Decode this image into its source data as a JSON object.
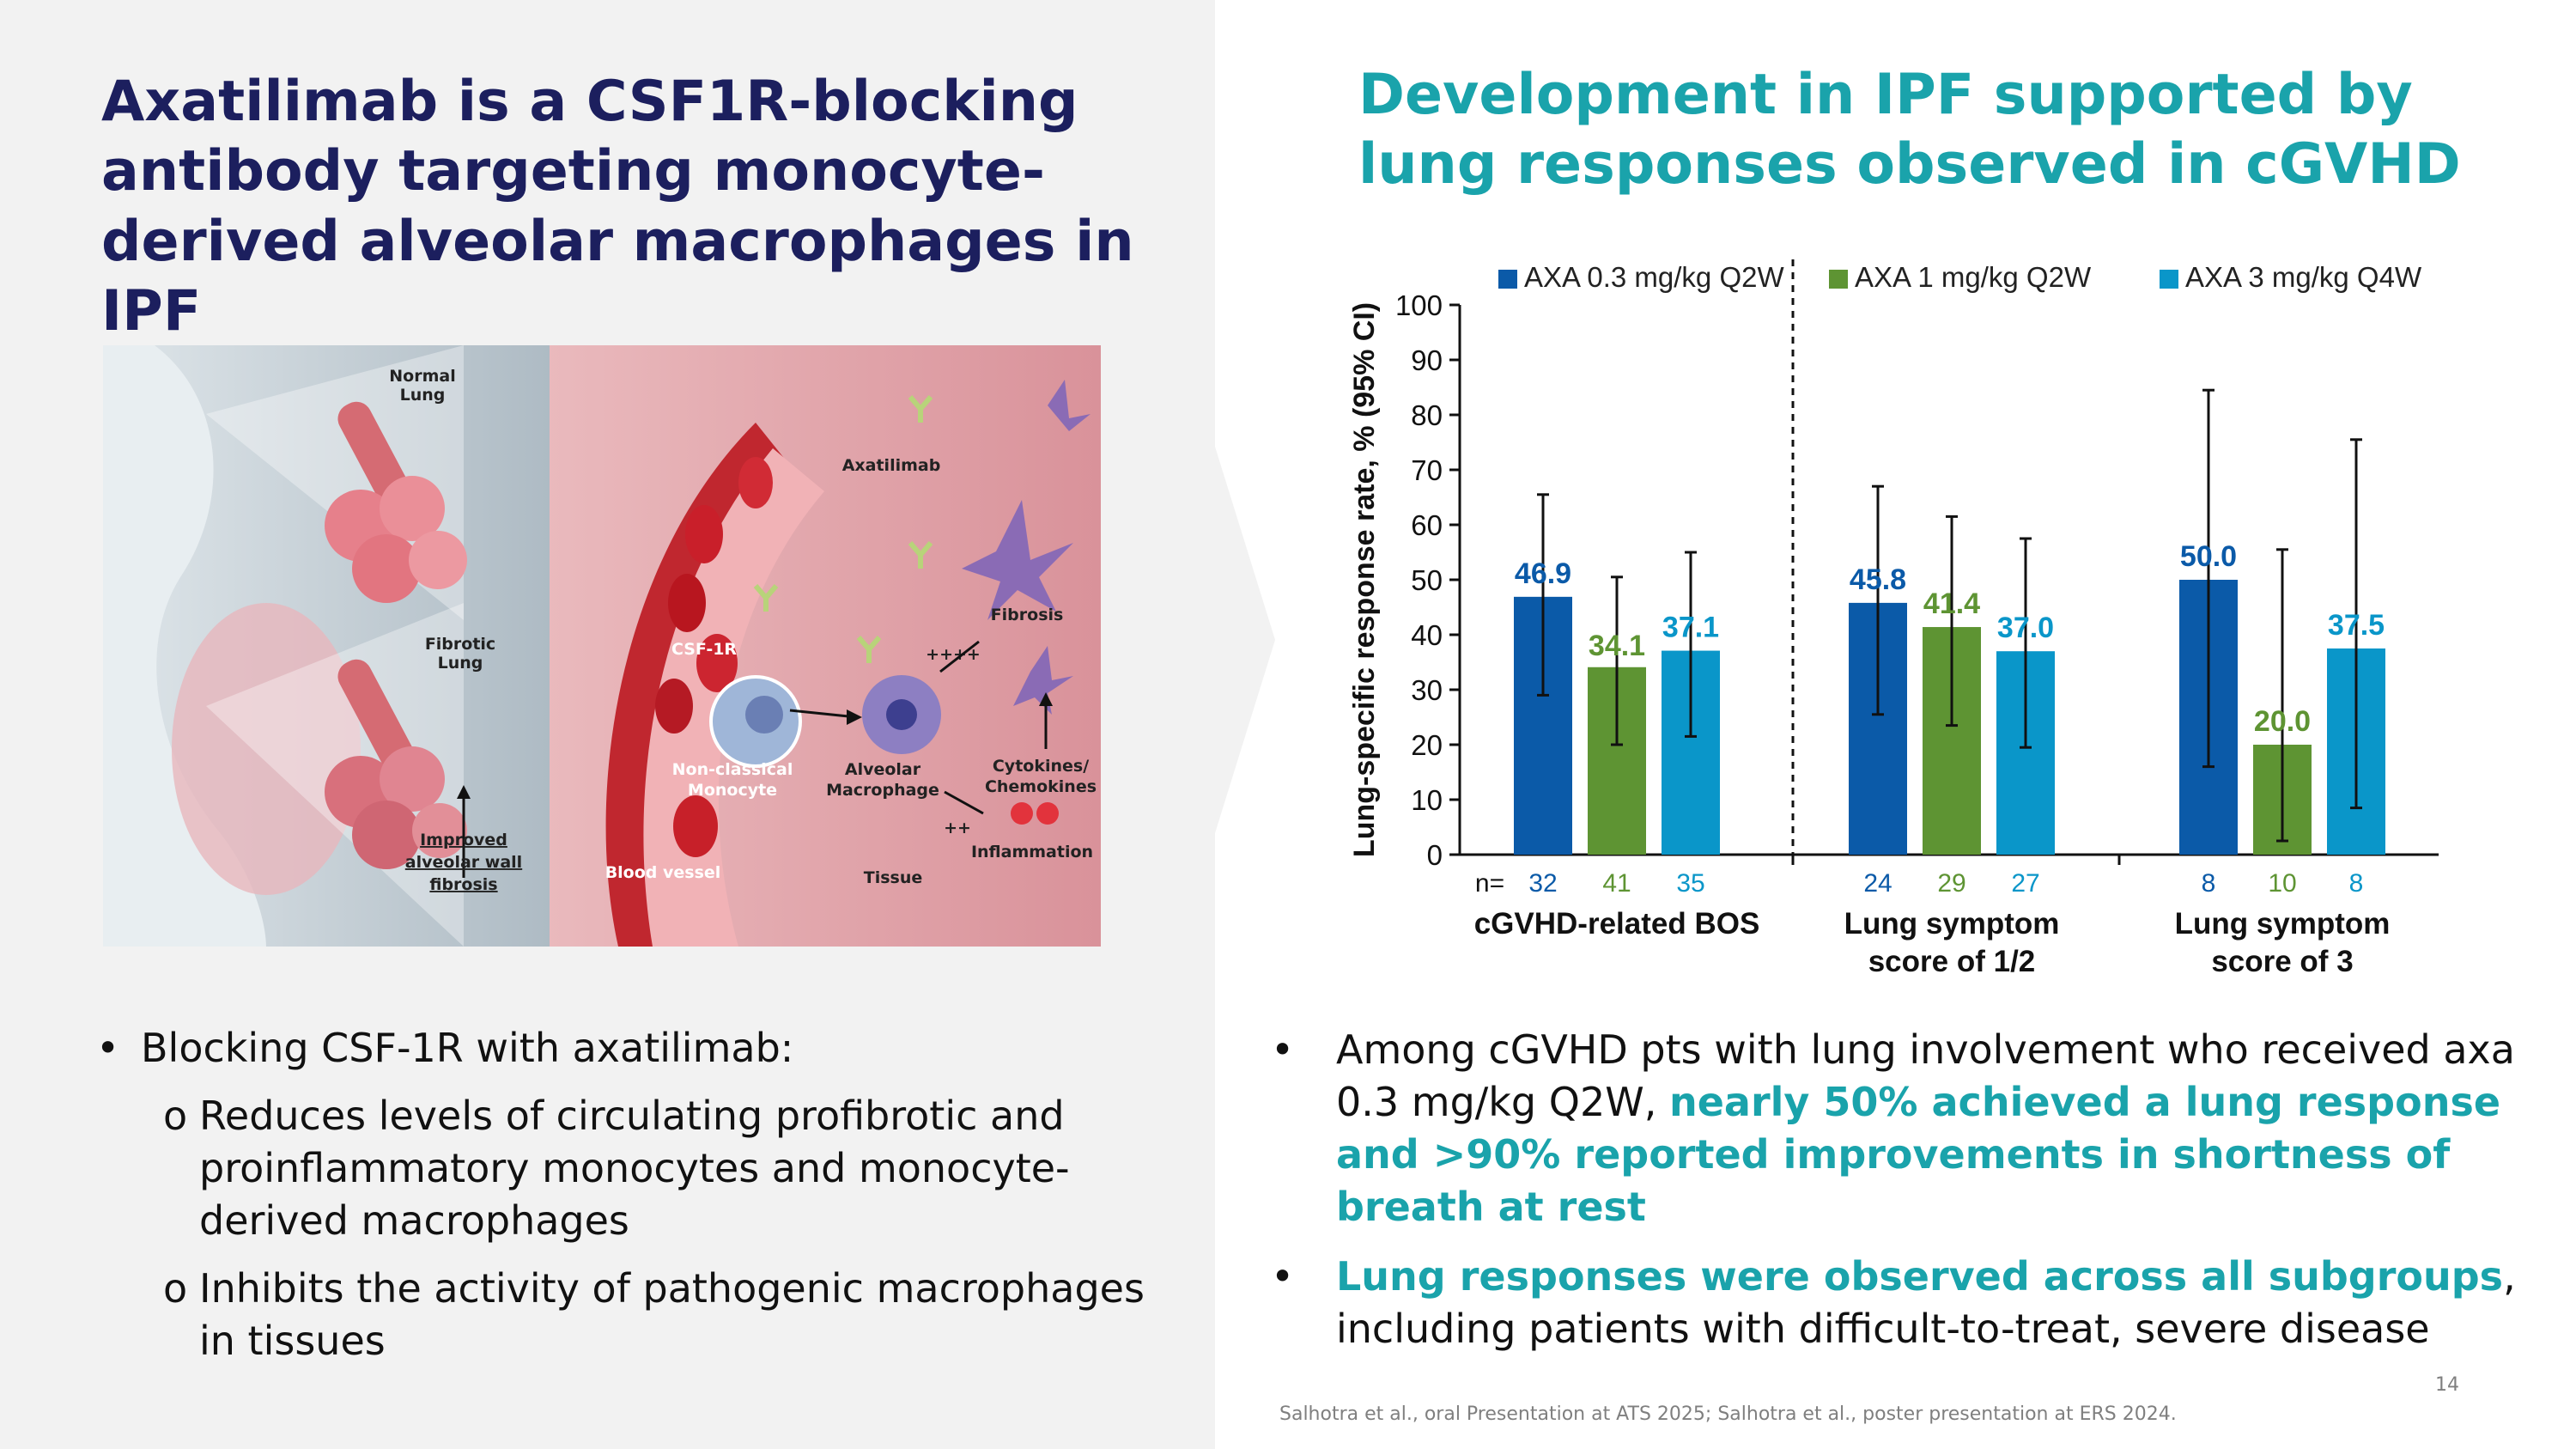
{
  "left": {
    "title": "Axatilimab is a CSF1R-blocking antibody targeting monocyte-derived alveolar macrophages in IPF",
    "bullets": {
      "main": "Blocking CSF-1R with axatilimab:",
      "sub": [
        "Reduces levels of circulating profibrotic and proinflammatory monocytes and monocyte-derived macrophages",
        "Inhibits the activity of pathogenic macrophages in tissues"
      ]
    }
  },
  "illustration": {
    "normal_lung_1": "Normal",
    "normal_lung_2": "Lung",
    "fibrotic_lung_1": "Fibrotic",
    "fibrotic_lung_2": "Lung",
    "improved_1": "Improved",
    "improved_2": "alveolar wall",
    "improved_3": "fibrosis",
    "csf1r": "CSF-1R",
    "axatilimab": "Axatilimab",
    "monocyte_1": "Non-classical",
    "monocyte_2": "Monocyte",
    "macrophage_1": "Alveolar",
    "macrophage_2": "Macrophage",
    "blood_vessel": "Blood vessel",
    "tissue": "Tissue",
    "fibrosis": "Fibrosis",
    "cytokines_1": "Cytokines/",
    "cytokines_2": "Chemokines",
    "inflammation": "Inflammation",
    "plus4": "++++",
    "plus2": "++"
  },
  "right": {
    "title": "Development in IPF supported by lung responses observed in cGVHD",
    "bullets": [
      {
        "pre": "Among cGVHD pts with lung involvement who received axa 0.3 mg/kg Q2W, ",
        "highlight": "nearly 50% achieved a lung response and >90% reported improvements in shortness of breath at rest",
        "post": ""
      },
      {
        "pre": "",
        "highlight": "Lung responses were observed across all subgroups",
        "post": ", including patients with difficult-to-treat, severe disease"
      }
    ]
  },
  "chart_data": {
    "type": "bar",
    "ylabel": "Lung-specific response rate, % (95% CI)",
    "ylim": [
      0,
      100
    ],
    "yticks": [
      0,
      10,
      20,
      30,
      40,
      50,
      60,
      70,
      80,
      90,
      100
    ],
    "n_label": "n=",
    "legend_position": "top",
    "groups": [
      {
        "label": [
          "cGVHD-related BOS"
        ]
      },
      {
        "label": [
          "Lung symptom",
          "score of 1/2"
        ]
      },
      {
        "label": [
          "Lung symptom",
          "score of 3"
        ]
      }
    ],
    "series": [
      {
        "name": "AXA 0.3 mg/kg Q2W",
        "color": "#0b5aa8",
        "values": [
          46.9,
          45.8,
          50.0
        ],
        "labels": [
          "46.9",
          "45.8",
          "50.0"
        ],
        "ci_low": [
          29,
          25.5,
          16
        ],
        "ci_high": [
          65.5,
          67,
          84.5
        ],
        "n": [
          "32",
          "24",
          "8"
        ]
      },
      {
        "name": "AXA 1 mg/kg Q2W",
        "color": "#5e9433",
        "values": [
          34.1,
          41.4,
          20.0
        ],
        "labels": [
          "34.1",
          "41.4",
          "20.0"
        ],
        "ci_low": [
          20,
          23.5,
          2.5
        ],
        "ci_high": [
          50.5,
          61.5,
          55.5
        ],
        "n": [
          "41",
          "29",
          "10"
        ]
      },
      {
        "name": "AXA 3 mg/kg Q4W",
        "color": "#0a96c9",
        "values": [
          37.1,
          37.0,
          37.5
        ],
        "labels": [
          "37.1",
          "37.0",
          "37.5"
        ],
        "ci_low": [
          21.5,
          19.5,
          8.5
        ],
        "ci_high": [
          55,
          57.5,
          75.5
        ],
        "n": [
          "35",
          "27",
          "8"
        ]
      }
    ],
    "divider_after_group": 0
  },
  "footnote": "Salhotra et al., oral Presentation at ATS 2025; Salhotra et al., poster presentation at ERS 2024.",
  "page_number": "14"
}
